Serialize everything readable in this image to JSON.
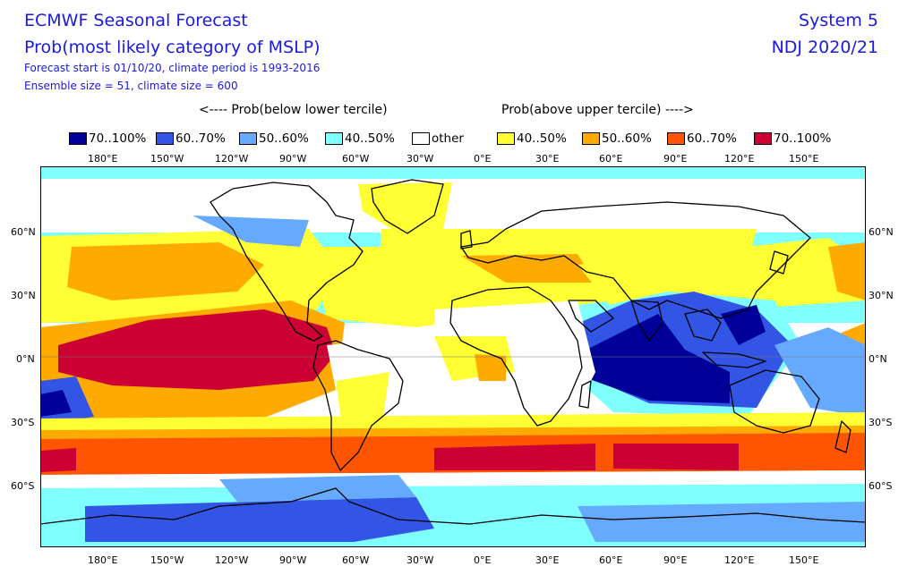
{
  "header": {
    "title": "ECMWF Seasonal Forecast",
    "subtitle": "Prob(most likely category of MSLP)",
    "line3": "Forecast start is 01/10/20, climate period is 1993-2016",
    "line4": "Ensemble size = 51, climate size = 600",
    "system": "System 5",
    "period": "NDJ 2020/21"
  },
  "legend": {
    "below_label": "<---- Prob(below lower tercile)",
    "above_label": "Prob(above upper tercile) ---->",
    "items": [
      {
        "label": "70..100%",
        "color": "#000099"
      },
      {
        "label": "60..70%",
        "color": "#3355e6"
      },
      {
        "label": "50..60%",
        "color": "#66aaff"
      },
      {
        "label": "40..50%",
        "color": "#80ffff"
      },
      {
        "label": "other",
        "color": "#ffffff"
      },
      {
        "label": "40..50%",
        "color": "#ffff33"
      },
      {
        "label": "50..60%",
        "color": "#ffaa00"
      },
      {
        "label": "60..70%",
        "color": "#ff5500"
      },
      {
        "label": "70..100%",
        "color": "#cc0033"
      }
    ]
  },
  "axes": {
    "lon_labels": [
      "180°E",
      "150°W",
      "120°W",
      "90°W",
      "60°W",
      "30°W",
      "0°E",
      "30°E",
      "60°E",
      "90°E",
      "120°E",
      "150°E"
    ],
    "lat_labels": [
      "60°N",
      "30°N",
      "0°N",
      "30°S",
      "60°S"
    ]
  }
}
